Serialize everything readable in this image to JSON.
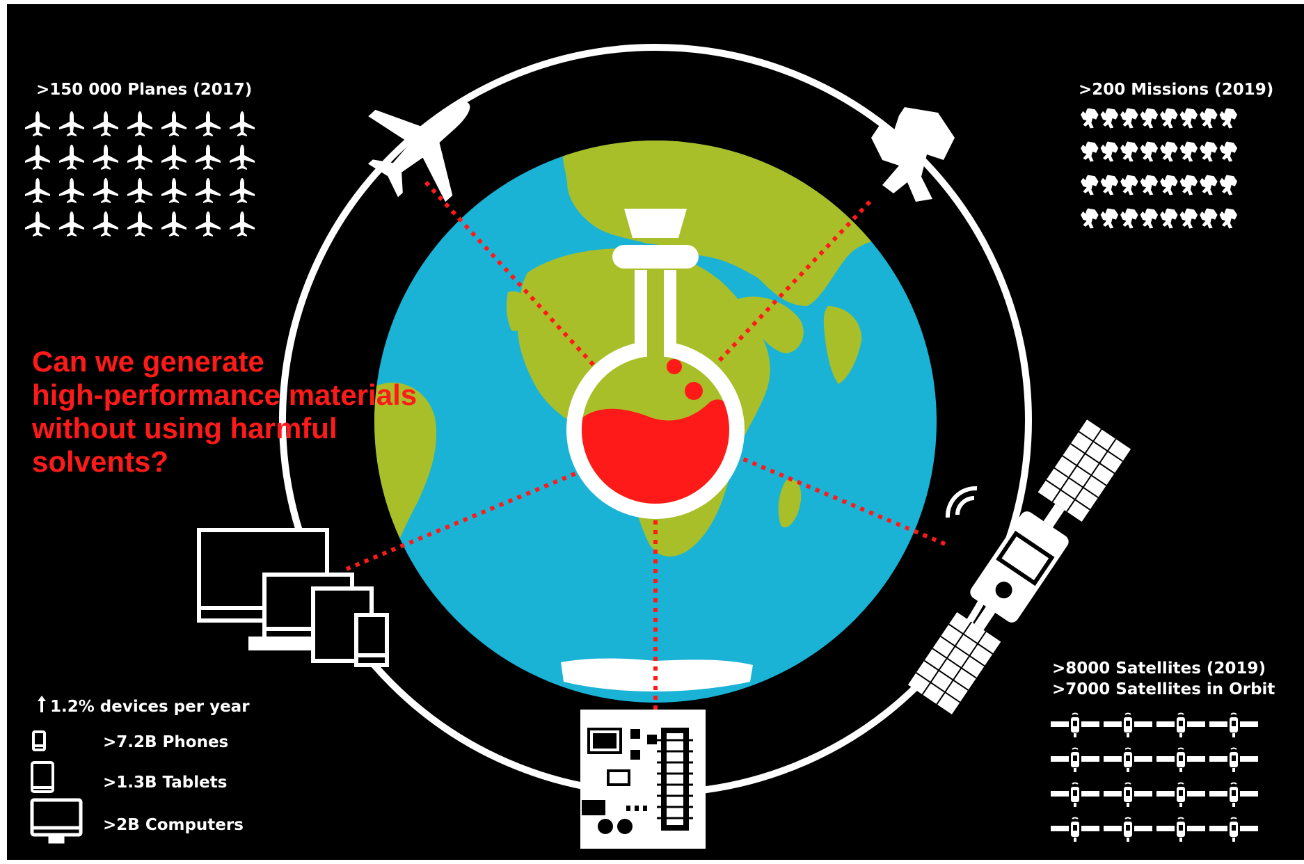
{
  "question": {
    "lines": [
      "Can we generate",
      "high-performance materials",
      "without using harmful",
      "solvents?"
    ]
  },
  "planes": {
    "label": ">150 000 Planes (2017)"
  },
  "missions": {
    "label": ">200 Missions (2019)"
  },
  "satellites": {
    "label_1": ">8000 Satellites (2019)",
    "label_2": ">7000 Satellites in Orbit"
  },
  "devices": {
    "growth": "1.2% devices per year",
    "phones": ">7.2B Phones",
    "tablets": ">1.3B Tablets",
    "computers": ">2B Computers"
  },
  "colors": {
    "background": "#000000",
    "ocean": "#1ab3d6",
    "land": "#a9bf29",
    "accent_red": "#ff1a1a",
    "foreground": "#ffffff"
  },
  "icons": {
    "center": "flask-icon",
    "orbit": [
      "airplane-icon",
      "astronaut-icon",
      "satellite-icon",
      "circuit-board-icon",
      "devices-icon"
    ]
  }
}
